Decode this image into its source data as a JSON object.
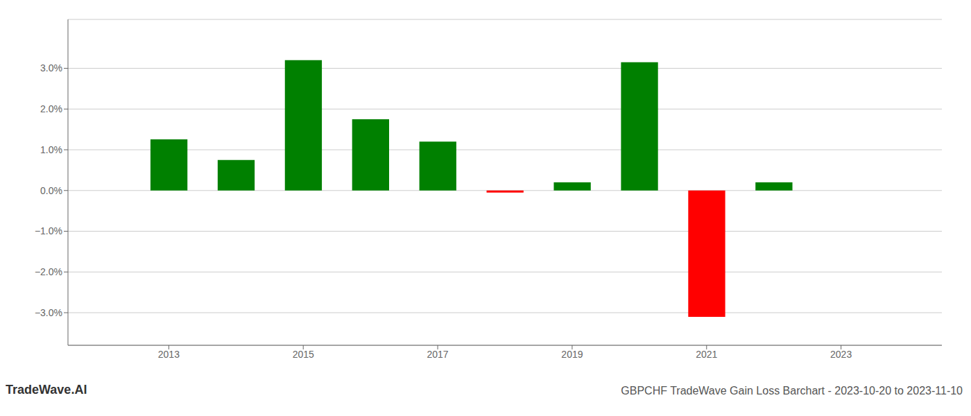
{
  "chart_data": {
    "type": "bar",
    "title": "GBPCHF TradeWave Gain Loss Barchart - 2023-10-20 to 2023-11-10",
    "annotations": [
      "TradeWave.AI"
    ],
    "x": [
      2013,
      2014,
      2015,
      2016,
      2017,
      2018,
      2019,
      2020,
      2021,
      2022
    ],
    "values": [
      0.01255,
      0.0075,
      0.032,
      0.0175,
      0.012,
      -0.0005,
      0.002,
      0.0315,
      -0.031,
      0.002
    ],
    "colors": [
      "#008000",
      "#008000",
      "#008000",
      "#008000",
      "#008000",
      "#ff0000",
      "#008000",
      "#008000",
      "#ff0000",
      "#008000"
    ],
    "xlim": [
      2011.5,
      2024.5
    ],
    "xticks": [
      2013,
      2015,
      2017,
      2019,
      2021,
      2023
    ],
    "ylim": [
      -0.038,
      0.042
    ],
    "yticks": [
      {
        "value": -0.03,
        "label": "−3.0%"
      },
      {
        "value": -0.02,
        "label": "−2.0%"
      },
      {
        "value": -0.01,
        "label": "−1.0%"
      },
      {
        "value": 0.0,
        "label": "0.0%"
      },
      {
        "value": 0.01,
        "label": "1.0%"
      },
      {
        "value": 0.02,
        "label": "2.0%"
      },
      {
        "value": 0.03,
        "label": "3.0%"
      }
    ],
    "grid": true
  }
}
